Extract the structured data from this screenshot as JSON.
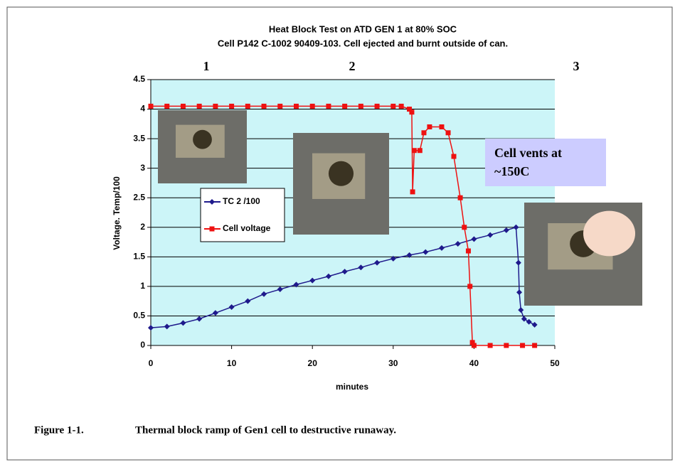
{
  "chart_data": {
    "type": "line",
    "title": "Heat Block Test on ATD GEN 1 at 80% SOC",
    "subtitle": "Cell P142 C-1002 90409-103. Cell ejected and burnt outside of can.",
    "x_label": "minutes",
    "y_label": "Voltage.  Temp/100",
    "phase_labels": [
      "1",
      "2",
      "3"
    ],
    "callout": [
      "Cell vents at",
      "~150C"
    ],
    "xlim": [
      0,
      50
    ],
    "xticks": [
      0,
      10,
      20,
      30,
      40,
      50
    ],
    "ylim": [
      0,
      4.5
    ],
    "yticks": [
      0,
      0.5,
      1,
      1.5,
      2,
      2.5,
      3,
      3.5,
      4,
      4.5
    ],
    "grid": true,
    "background": "#ccf5f8",
    "series": [
      {
        "name": "TC 2 /100",
        "color": "#1f1a8c",
        "marker": "diamond",
        "x": [
          0,
          2,
          4,
          6,
          8,
          10,
          12,
          14,
          16,
          18,
          20,
          22,
          24,
          26,
          28,
          30,
          32,
          34,
          36,
          38,
          40,
          42,
          44,
          45.2,
          45.5,
          45.6,
          45.8,
          46.2,
          46.8,
          47.5
        ],
        "values": [
          0.3,
          0.32,
          0.38,
          0.45,
          0.55,
          0.65,
          0.75,
          0.87,
          0.95,
          1.03,
          1.1,
          1.17,
          1.25,
          1.32,
          1.4,
          1.47,
          1.53,
          1.58,
          1.65,
          1.72,
          1.8,
          1.87,
          1.95,
          2.0,
          1.4,
          0.9,
          0.6,
          0.45,
          0.4,
          0.35
        ]
      },
      {
        "name": "Cell voltage",
        "color": "#ee1111",
        "marker": "square",
        "x": [
          0,
          2,
          4,
          6,
          8,
          10,
          12,
          14,
          16,
          18,
          20,
          22,
          24,
          26,
          28,
          30,
          31,
          32,
          32.3,
          32.4,
          32.6,
          33.3,
          33.8,
          34.5,
          36,
          36.8,
          37.5,
          38.3,
          38.8,
          39.3,
          39.5,
          39.8,
          40,
          42,
          44,
          46,
          47.5
        ],
        "values": [
          4.05,
          4.05,
          4.05,
          4.05,
          4.05,
          4.05,
          4.05,
          4.05,
          4.05,
          4.05,
          4.05,
          4.05,
          4.05,
          4.05,
          4.05,
          4.05,
          4.05,
          4.0,
          3.95,
          2.6,
          3.3,
          3.3,
          3.6,
          3.7,
          3.7,
          3.6,
          3.2,
          2.5,
          2.0,
          1.6,
          1.0,
          0.05,
          0,
          0,
          0,
          0,
          0
        ]
      }
    ]
  },
  "caption": {
    "number": "Figure 1-1.",
    "text": "Thermal block ramp of Gen1 cell to destructive runaway."
  }
}
